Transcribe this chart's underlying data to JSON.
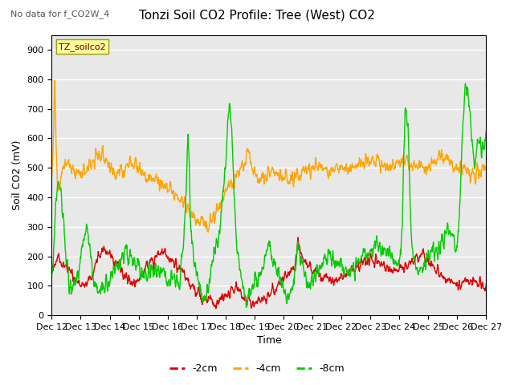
{
  "title": "Tonzi Soil CO2 Profile: Tree (West) CO2",
  "subtitle": "No data for f_CO2W_4",
  "ylabel": "Soil CO2 (mV)",
  "xlabel": "Time",
  "legend_label": "TZ_soilco2",
  "series_labels": [
    "-2cm",
    "-4cm",
    "-8cm"
  ],
  "series_colors": [
    "#dd0000",
    "#ffa500",
    "#00cc00"
  ],
  "ylim": [
    0,
    950
  ],
  "yticks": [
    0,
    100,
    200,
    300,
    400,
    500,
    600,
    700,
    800,
    900
  ],
  "xtick_labels": [
    "Dec 12",
    "Dec 13",
    "Dec 14",
    "Dec 15",
    "Dec 16",
    "Dec 17",
    "Dec 18",
    "Dec 19",
    "Dec 20",
    "Dec 21",
    "Dec 22",
    "Dec 23",
    "Dec 24",
    "Dec 25",
    "Dec 26",
    "Dec 27"
  ],
  "bg_color": "#ffffff",
  "plot_bg_color": "#e8e8e8",
  "grid_color": "#ffffff",
  "linewidth": 1.0,
  "title_fontsize": 11,
  "subtitle_fontsize": 8,
  "axis_fontsize": 8,
  "ylabel_fontsize": 9
}
